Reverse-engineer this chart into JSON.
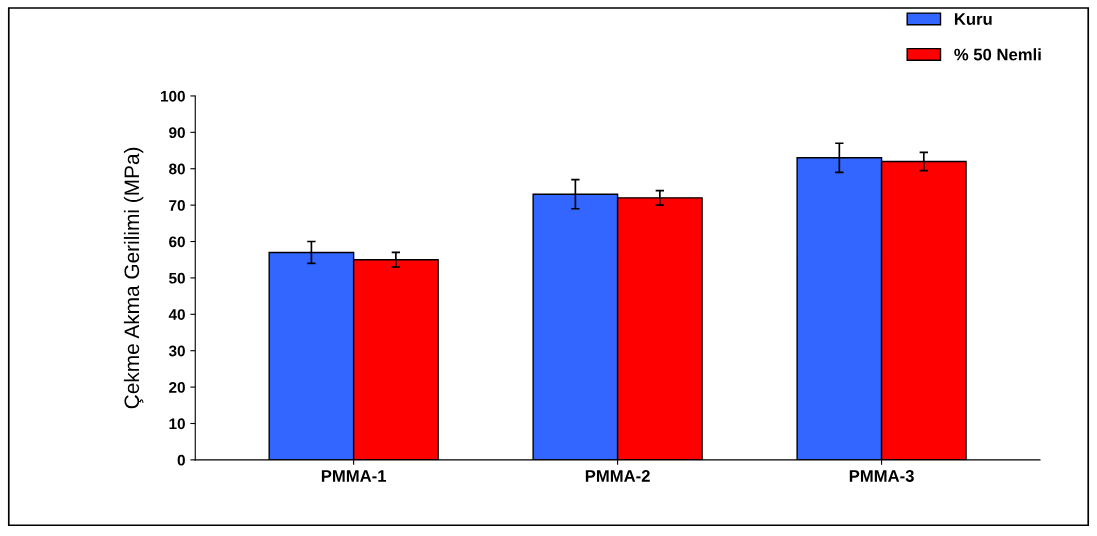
{
  "chart_data": {
    "type": "bar",
    "ylabel": "Çekme Akma Gerilimi (MPa)",
    "categories": [
      "PMMA-1",
      "PMMA-2",
      "PMMA-3"
    ],
    "series": [
      {
        "name": "Kuru",
        "color": "#3366ff",
        "values": [
          57,
          73,
          83
        ],
        "errors": [
          3,
          4,
          4
        ]
      },
      {
        "name": "% 50 Nemli",
        "color": "#ff0000",
        "values": [
          55,
          72,
          82
        ],
        "errors": [
          2,
          2,
          2.5
        ]
      }
    ],
    "ylim": [
      0,
      100
    ],
    "yticks": [
      0,
      10,
      20,
      30,
      40,
      50,
      60,
      70,
      80,
      90,
      100
    ],
    "grid": false,
    "legend": "top right"
  }
}
